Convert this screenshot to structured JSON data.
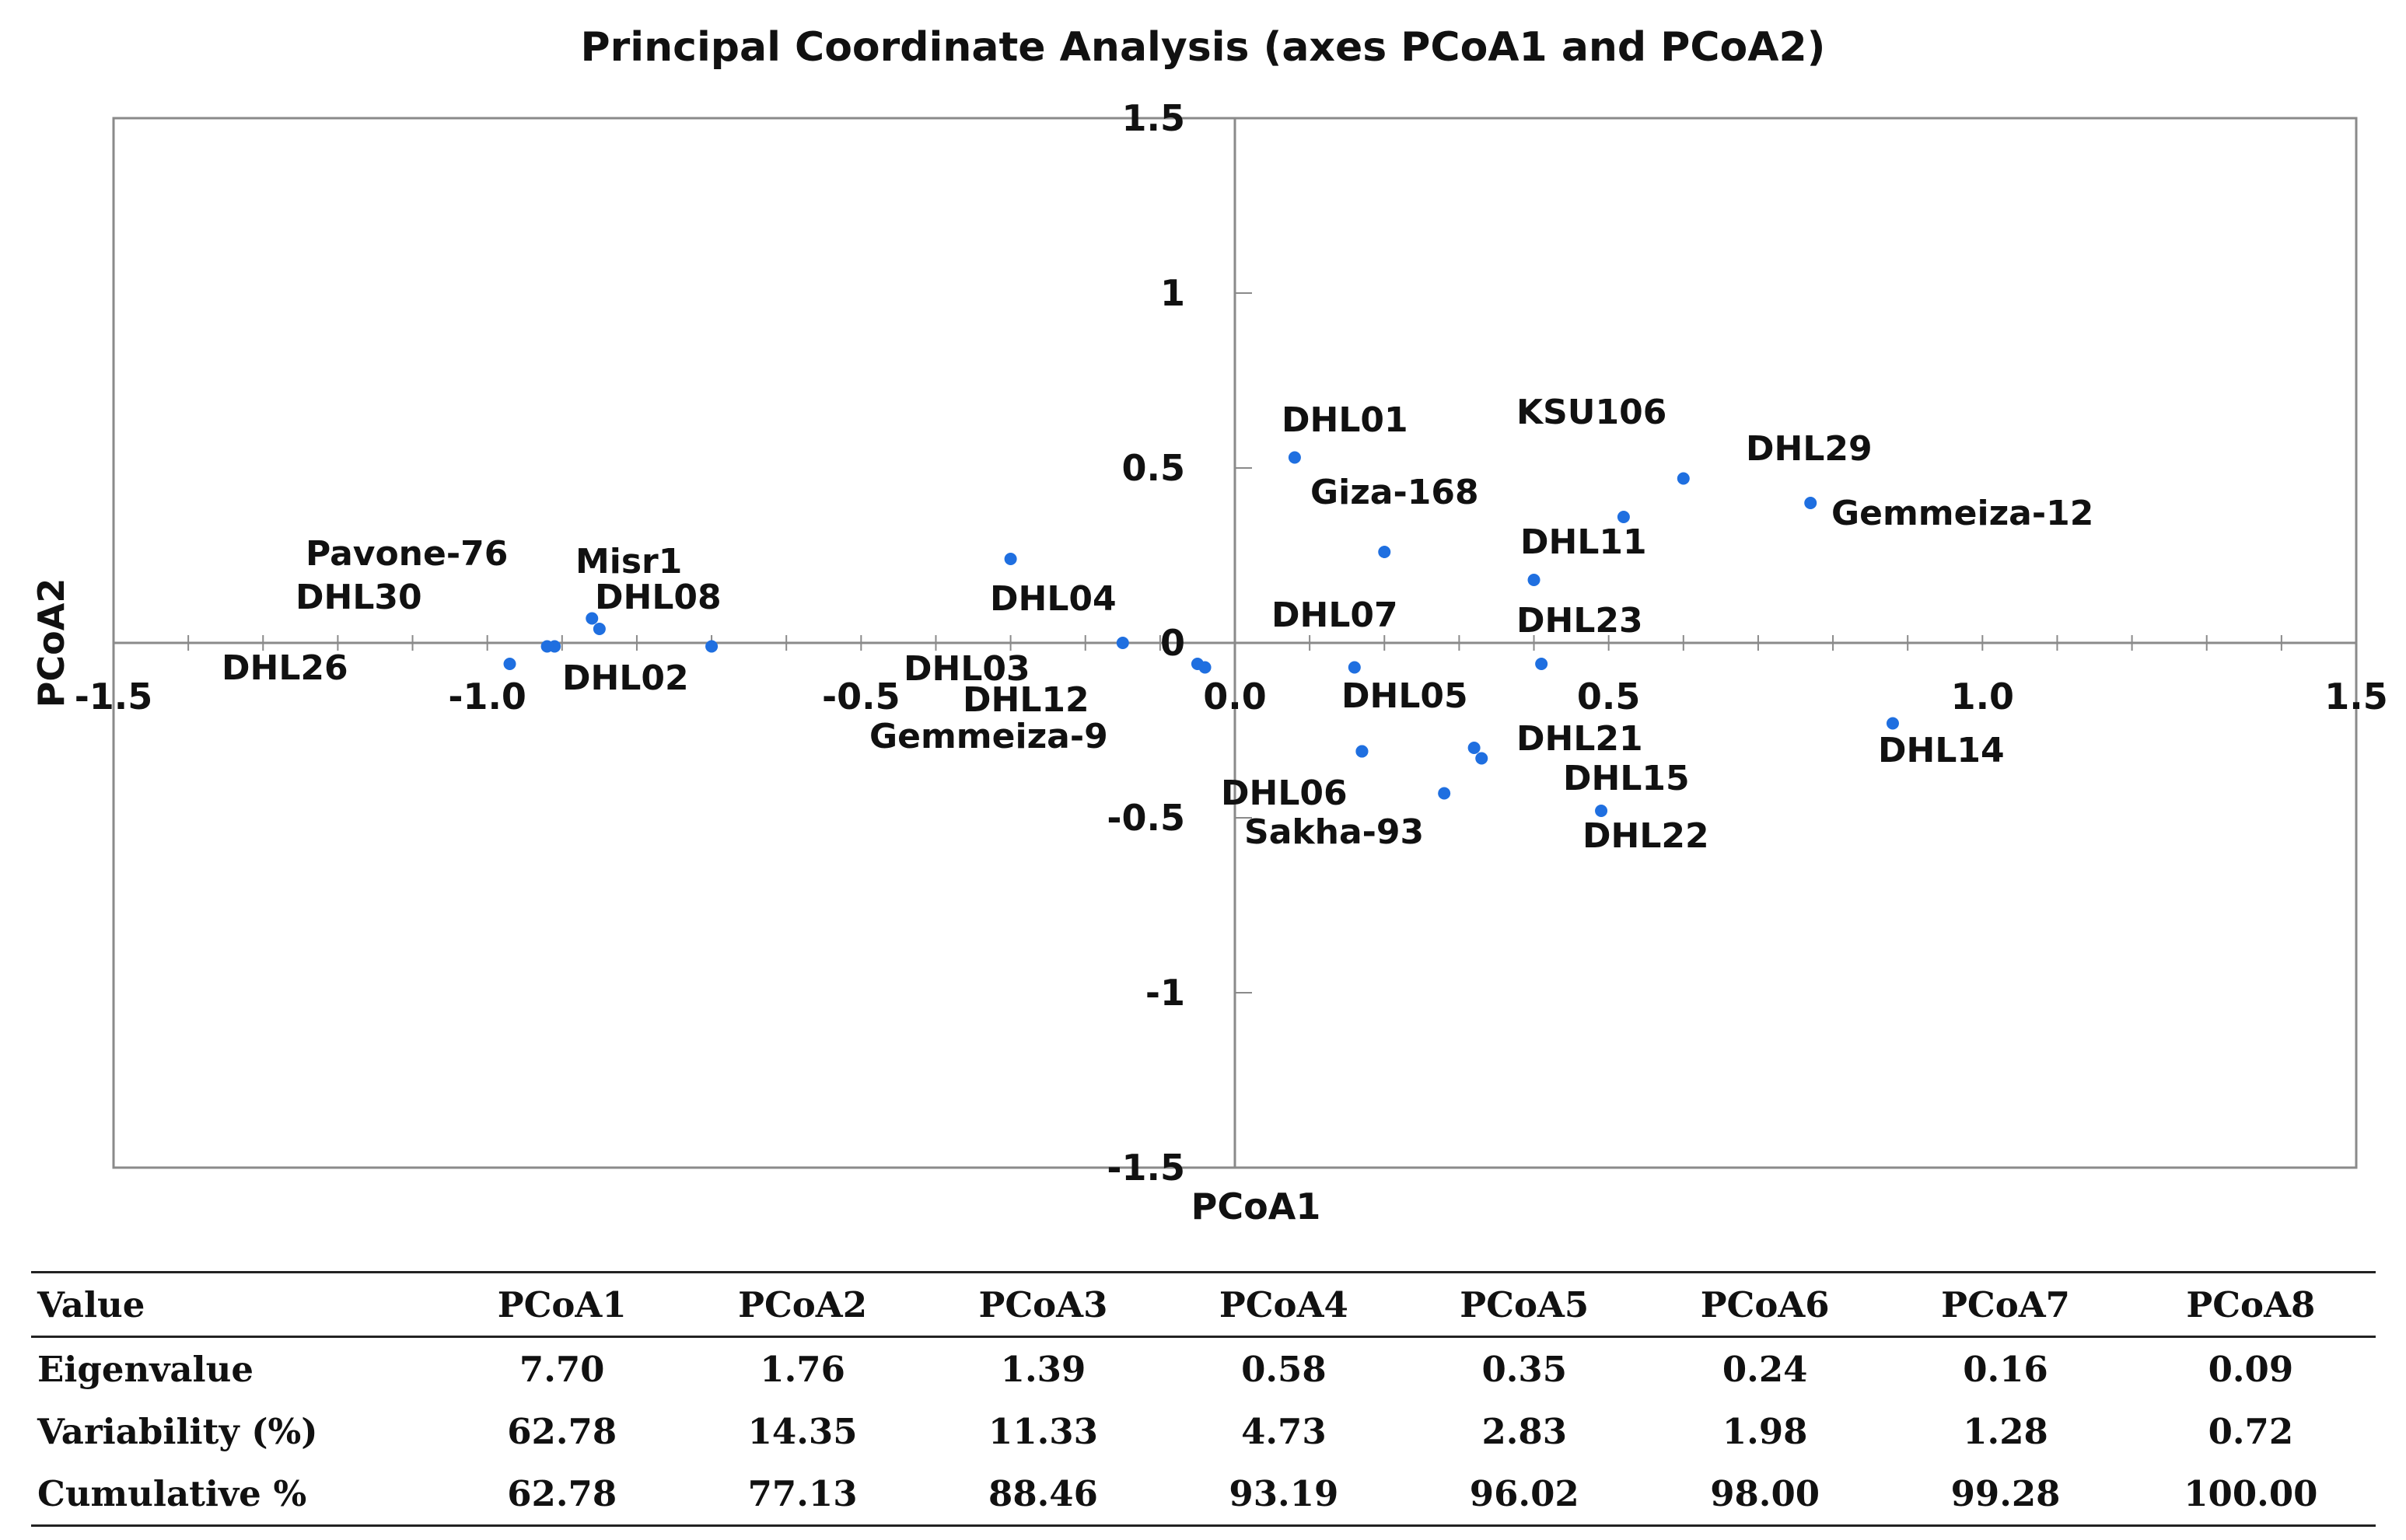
{
  "chart_data": {
    "type": "scatter",
    "title": "Principal Coordinate Analysis (axes PCoA1 and PCoA2)",
    "xlabel": "PCoA1",
    "ylabel": "PCoA2",
    "xlim": [
      -1.5,
      1.5
    ],
    "ylim": [
      -1.5,
      1.5
    ],
    "x_ticks": [
      "-1.5",
      "-1.0",
      "-0.5",
      "0.0",
      "0.5",
      "1.0",
      "1.5"
    ],
    "y_ticks": [
      "1.5",
      "1",
      "0.5",
      "0",
      "-0.5",
      "-1",
      "-1.5"
    ],
    "grid": false,
    "color": "#1f6fe0",
    "points": [
      {
        "label": "DHL01",
        "x": 0.08,
        "y": 0.53
      },
      {
        "label": "Giza-168",
        "x": 0.2,
        "y": 0.26
      },
      {
        "label": "KSU106",
        "x": 0.6,
        "y": 0.47
      },
      {
        "label": "DHL29",
        "x": 0.52,
        "y": 0.36
      },
      {
        "label": "Gemmeiza-12",
        "x": 0.77,
        "y": 0.4
      },
      {
        "label": "DHL11",
        "x": 0.4,
        "y": 0.18
      },
      {
        "label": "DHL07",
        "x": 0.16,
        "y": -0.07
      },
      {
        "label": "DHL23",
        "x": 0.41,
        "y": -0.06
      },
      {
        "label": "DHL05",
        "x": 0.17,
        "y": -0.31
      },
      {
        "label": "DHL21",
        "x": 0.32,
        "y": -0.3
      },
      {
        "label": "DHL15",
        "x": 0.33,
        "y": -0.33
      },
      {
        "label": "Sakha-93",
        "x": 0.28,
        "y": -0.43
      },
      {
        "label": "DHL06",
        "x": 0.17,
        "y": -0.31
      },
      {
        "label": "DHL22",
        "x": 0.49,
        "y": -0.48
      },
      {
        "label": "DHL14",
        "x": 0.88,
        "y": -0.23
      },
      {
        "label": "DHL04",
        "x": -0.3,
        "y": 0.24
      },
      {
        "label": "DHL03",
        "x": -0.15,
        "y": 0.0
      },
      {
        "label": "DHL12",
        "x": -0.05,
        "y": -0.06
      },
      {
        "label": "Gemmeiza-9",
        "x": -0.04,
        "y": -0.07
      },
      {
        "label": "Pavone-76",
        "x": -0.86,
        "y": 0.07
      },
      {
        "label": "Misr1",
        "x": -0.85,
        "y": 0.04
      },
      {
        "label": "DHL30",
        "x": -0.91,
        "y": -0.01
      },
      {
        "label": "DHL08",
        "x": -0.7,
        "y": -0.01
      },
      {
        "label": "DHL26",
        "x": -0.97,
        "y": -0.06
      },
      {
        "label": "DHL02",
        "x": -0.92,
        "y": -0.01
      }
    ]
  },
  "table": {
    "headers": [
      "Value",
      "PCoA1",
      "PCoA2",
      "PCoA3",
      "PCoA4",
      "PCoA5",
      "PCoA6",
      "PCoA7",
      "PCoA8"
    ],
    "rows": [
      [
        "Eigenvalue",
        "7.70",
        "1.76",
        "1.39",
        "0.58",
        "0.35",
        "0.24",
        "0.16",
        "0.09"
      ],
      [
        "Variability  (%)",
        "62.78",
        "14.35",
        "11.33",
        "4.73",
        "2.83",
        "1.98",
        "1.28",
        "0.72"
      ],
      [
        "Cumulative  %",
        "62.78",
        "77.13",
        "88.46",
        "93.19",
        "96.02",
        "98.00",
        "99.28",
        "100.00"
      ]
    ]
  }
}
